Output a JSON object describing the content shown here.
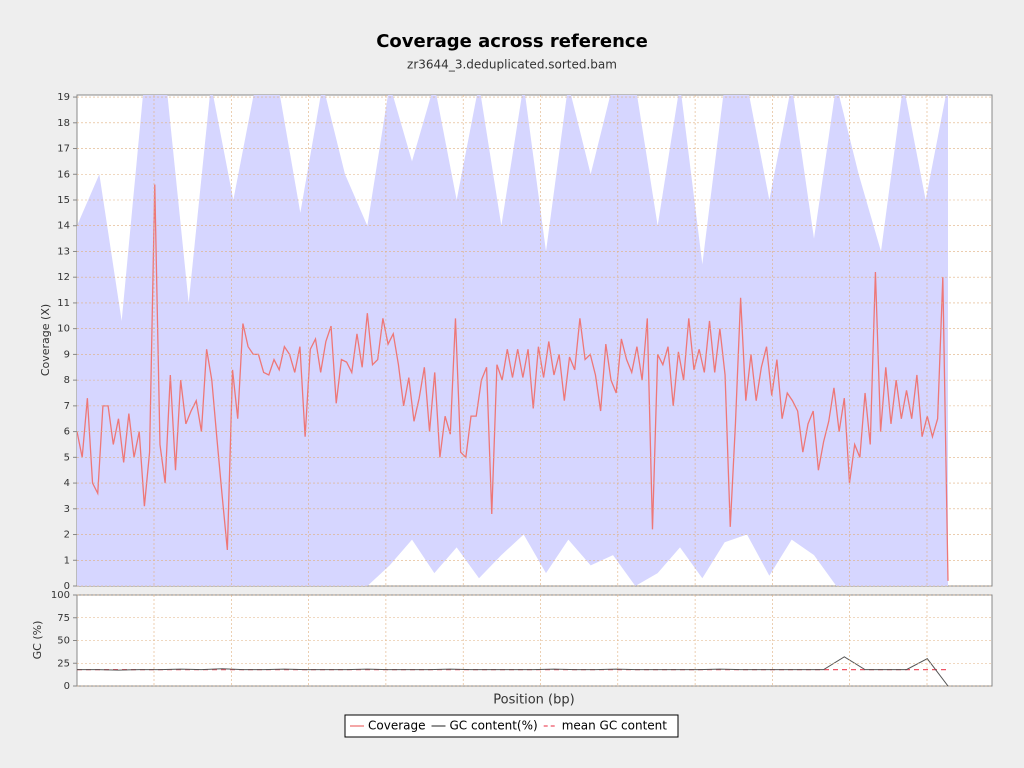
{
  "chart_data": {
    "type": "line",
    "title": "Coverage across reference",
    "subtitle": "zr3644_3.deduplicated.sorted.bam",
    "xlabel": "Position (bp)",
    "ylabel": "Coverage (X)",
    "ylim": [
      0,
      19.08
    ],
    "yticks": [
      0,
      1,
      2,
      3,
      4,
      5,
      6,
      7,
      8,
      9,
      10,
      11,
      12,
      13,
      14,
      15,
      16,
      17,
      18,
      19
    ],
    "band": {
      "color": "#d6d6ff",
      "upper": [
        14,
        16,
        10.3,
        19.5,
        19.5,
        11,
        19.5,
        15,
        19.5,
        19.5,
        14.5,
        19.5,
        16,
        14,
        19.5,
        16.5,
        19.5,
        15,
        19.5,
        14,
        19.5,
        13,
        19.5,
        16,
        19.5,
        19.5,
        14,
        19.5,
        12.5,
        19.5,
        19.5,
        15,
        19.5,
        13.5,
        19.5,
        16,
        13,
        19.5,
        15,
        19.5
      ],
      "lower": [
        0,
        0,
        0,
        0,
        0,
        0,
        0,
        0,
        0,
        0,
        0,
        0,
        0,
        0,
        0.8,
        1.8,
        0.5,
        1.5,
        0.3,
        1.2,
        2,
        0.5,
        1.8,
        0.8,
        1.2,
        0,
        0.5,
        1.5,
        0.3,
        1.7,
        2,
        0.4,
        1.8,
        1.2,
        0,
        0,
        0,
        0,
        0,
        0
      ]
    },
    "series": [
      {
        "name": "Coverage",
        "color": "#ee7777",
        "values": [
          6,
          5,
          7.3,
          4,
          3.6,
          7,
          7,
          5.5,
          6.5,
          4.8,
          6.7,
          5,
          6,
          3.1,
          5.2,
          15.6,
          5.5,
          4,
          8.2,
          4.5,
          8,
          6.3,
          6.8,
          7.2,
          6,
          9.2,
          8,
          5.7,
          3.5,
          1.4,
          8.4,
          6.5,
          10.2,
          9.3,
          9,
          9,
          8.3,
          8.2,
          8.8,
          8.4,
          9.3,
          9,
          8.3,
          9.3,
          5.8,
          9.2,
          9.6,
          8.3,
          9.5,
          10.1,
          7.1,
          8.8,
          8.7,
          8.3,
          9.8,
          8.5,
          10.6,
          8.6,
          8.8,
          10.4,
          9.4,
          9.8,
          8.6,
          7,
          8.1,
          6.4,
          7.3,
          8.5,
          6,
          8.3,
          5,
          6.6,
          5.9,
          10.4,
          5.2,
          5,
          6.6,
          6.6,
          8,
          8.5,
          2.8,
          8.6,
          8,
          9.2,
          8.1,
          9.2,
          8.1,
          9.2,
          6.9,
          9.3,
          8.1,
          9.5,
          8.2,
          9,
          7.2,
          8.9,
          8.4,
          10.4,
          8.8,
          9,
          8.2,
          6.8,
          9.4,
          8,
          7.5,
          9.6,
          8.8,
          8.3,
          9.3,
          8,
          10.4,
          2.2,
          9,
          8.6,
          9.3,
          7,
          9.1,
          8,
          10.4,
          8.4,
          9.2,
          8.3,
          10.3,
          8.3,
          10,
          8.2,
          2.3,
          6.3,
          11.2,
          7.2,
          9,
          7.2,
          8.5,
          9.3,
          7.4,
          8.8,
          6.5,
          7.5,
          7.2,
          6.8,
          5.2,
          6.3,
          6.8,
          4.5,
          5.6,
          6.4,
          7.7,
          6,
          7.3,
          4,
          5.5,
          5,
          7.5,
          5.5,
          12.2,
          6,
          8.5,
          6.3,
          8,
          6.5,
          7.6,
          6.5,
          8.2,
          5.8,
          6.6,
          5.8,
          6.5,
          12,
          0.2
        ]
      }
    ],
    "gc": {
      "ylabel": "GC (%)",
      "ylim": [
        0,
        100
      ],
      "yticks": [
        0,
        25,
        50,
        75,
        100
      ],
      "series": [
        {
          "name": "GC content(%)",
          "color": "#555555",
          "values": [
            18,
            18,
            17.5,
            18,
            18,
            18.5,
            18,
            19,
            18,
            18,
            18.5,
            18,
            18,
            18,
            18.5,
            18,
            18,
            18,
            18.5,
            18,
            18,
            18,
            18,
            18.5,
            18,
            18,
            18.5,
            18,
            18,
            18,
            18,
            18.5,
            18,
            18,
            18,
            18,
            18,
            32,
            18,
            18,
            18,
            30,
            0
          ]
        },
        {
          "name": "mean GC content",
          "color": "#ee5566",
          "value": 18
        }
      ]
    }
  }
}
